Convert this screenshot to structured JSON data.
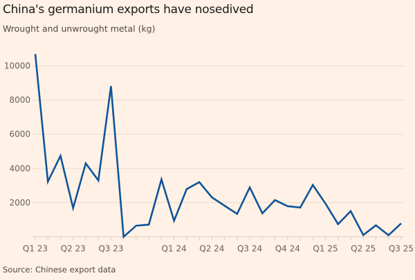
{
  "title": "China's germanium exports have nosedived",
  "subtitle": "Wrought and unwrought metal (kg)",
  "source": "Source: Chinese export data",
  "colors": {
    "background": "#fff1e5",
    "line": "#0f5499",
    "grid": "#e9dccf"
  },
  "chart_data": {
    "type": "line",
    "title": "China's germanium exports have nosedived",
    "ylabel": "Wrought and unwrought metal (kg)",
    "ylim": [
      0,
      10700
    ],
    "y_ticks": [
      2000,
      4000,
      6000,
      8000,
      10000
    ],
    "grid": true,
    "x_ticks": [
      {
        "label": "Q1 23",
        "index": 0
      },
      {
        "label": "Q2 23",
        "index": 3
      },
      {
        "label": "Q3 23",
        "index": 6
      },
      {
        "label": "Q1 24",
        "index": 11
      },
      {
        "label": "Q2 24",
        "index": 14
      },
      {
        "label": "Q3 24",
        "index": 17
      },
      {
        "label": "Q4 24",
        "index": 20
      },
      {
        "label": "Q1 25",
        "index": 23
      },
      {
        "label": "Q2 25",
        "index": 26
      },
      {
        "label": "Q3 25",
        "index": 29
      }
    ],
    "series": [
      {
        "values": [
          10700,
          3230,
          4740,
          1680,
          4300,
          3300,
          8820,
          0,
          650,
          710,
          3360,
          940,
          2790,
          3200,
          2310,
          1820,
          1340,
          2890,
          1370,
          2150,
          1790,
          1710,
          3030,
          1950,
          740,
          1500,
          100,
          670,
          90,
          780
        ]
      }
    ]
  }
}
